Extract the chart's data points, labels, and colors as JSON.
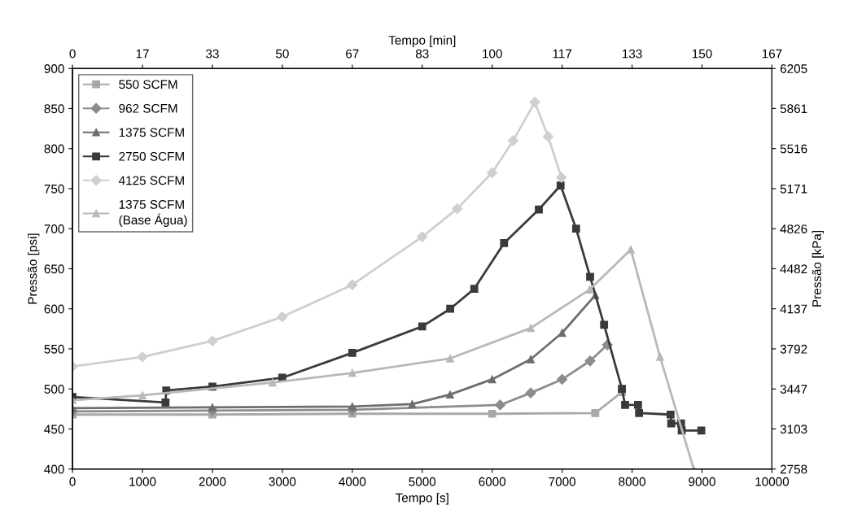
{
  "chart_data": {
    "type": "line",
    "xlabel": "Tempo [s]",
    "ylabel": "Pressão [psi]",
    "y2label": "Pressão [kPa]",
    "x2label": "Tempo [min]",
    "xlim": [
      0,
      10000
    ],
    "xticks": [
      0,
      1000,
      2000,
      3000,
      4000,
      5000,
      6000,
      7000,
      8000,
      9000,
      10000
    ],
    "ylim": [
      400,
      900
    ],
    "yticks": [
      400,
      450,
      500,
      550,
      600,
      650,
      700,
      750,
      800,
      850,
      900
    ],
    "y2lim": [
      2758,
      6205
    ],
    "y2ticks": [
      2758,
      3103,
      3447,
      3792,
      4137,
      4482,
      4826,
      5171,
      5516,
      5861,
      6205
    ],
    "x2lim": [
      0,
      166.667
    ],
    "x2ticks": [
      0,
      {
        "value": 16.667,
        "label": "17"
      },
      {
        "value": 33.333,
        "label": "33"
      },
      50,
      {
        "value": 66.667,
        "label": "67"
      },
      {
        "value": 83.333,
        "label": "83"
      },
      100,
      {
        "value": 116.667,
        "label": "117"
      },
      {
        "value": 133.333,
        "label": "133"
      },
      150,
      {
        "value": 166.667,
        "label": "167"
      }
    ],
    "grid": false,
    "legend": "top left",
    "line_style": "solid",
    "series": [
      {
        "name": "550 SCFM",
        "color": "#a8a8a8",
        "marker": "square",
        "x": [
          0,
          2000,
          4000,
          6000,
          7474,
          7855
        ],
        "values": [
          468,
          468,
          469,
          469,
          470,
          496
        ]
      },
      {
        "name": "962 SCFM",
        "color": "#8c8c8c",
        "marker": "diamond",
        "x": [
          0,
          2000,
          4000,
          6113,
          6551,
          7000,
          7400,
          7647
        ],
        "values": [
          472,
          473,
          474,
          480,
          495,
          512,
          535,
          555
        ]
      },
      {
        "name": "1375 SCFM",
        "color": "#6e6e6e",
        "marker": "triangle",
        "x": [
          0,
          2000,
          4000,
          4856,
          5398,
          6000,
          6551,
          7000,
          7474
        ],
        "values": [
          476,
          477,
          478,
          481,
          493,
          512,
          537,
          570,
          617
        ]
      },
      {
        "name": "2750 SCFM",
        "color": "#3a3a3a",
        "marker": "square",
        "x": [
          0,
          1330,
          1340,
          2000,
          3000,
          4000,
          5000,
          5400,
          5744,
          6170,
          6667,
          6978,
          7200,
          7400,
          7600,
          7855,
          7900,
          8085,
          8100,
          8550,
          8560,
          8700,
          8710,
          8990
        ],
        "values": [
          490,
          483,
          498,
          503,
          514,
          545,
          578,
          600,
          625,
          682,
          724,
          754,
          700,
          640,
          580,
          500,
          480,
          480,
          470,
          468,
          457,
          457,
          448,
          448
        ]
      },
      {
        "name": "4125 SCFM",
        "color": "#cfcfcf",
        "marker": "diamond",
        "x": [
          0,
          1000,
          2000,
          3000,
          4000,
          5000,
          5500,
          6000,
          6300,
          6609,
          6800,
          6990
        ],
        "values": [
          528,
          540,
          560,
          590,
          630,
          690,
          725,
          770,
          810,
          858,
          815,
          764
        ]
      },
      {
        "name": "1375 SCFM\n(Base Água)",
        "color": "#b8b8b8",
        "marker": "triangle",
        "x": [
          0,
          1000,
          2860,
          4000,
          5398,
          6551,
          7393,
          7982,
          8400,
          8881
        ],
        "values": [
          486,
          492,
          508,
          520,
          538,
          576,
          624,
          674,
          540,
          400
        ]
      }
    ]
  }
}
